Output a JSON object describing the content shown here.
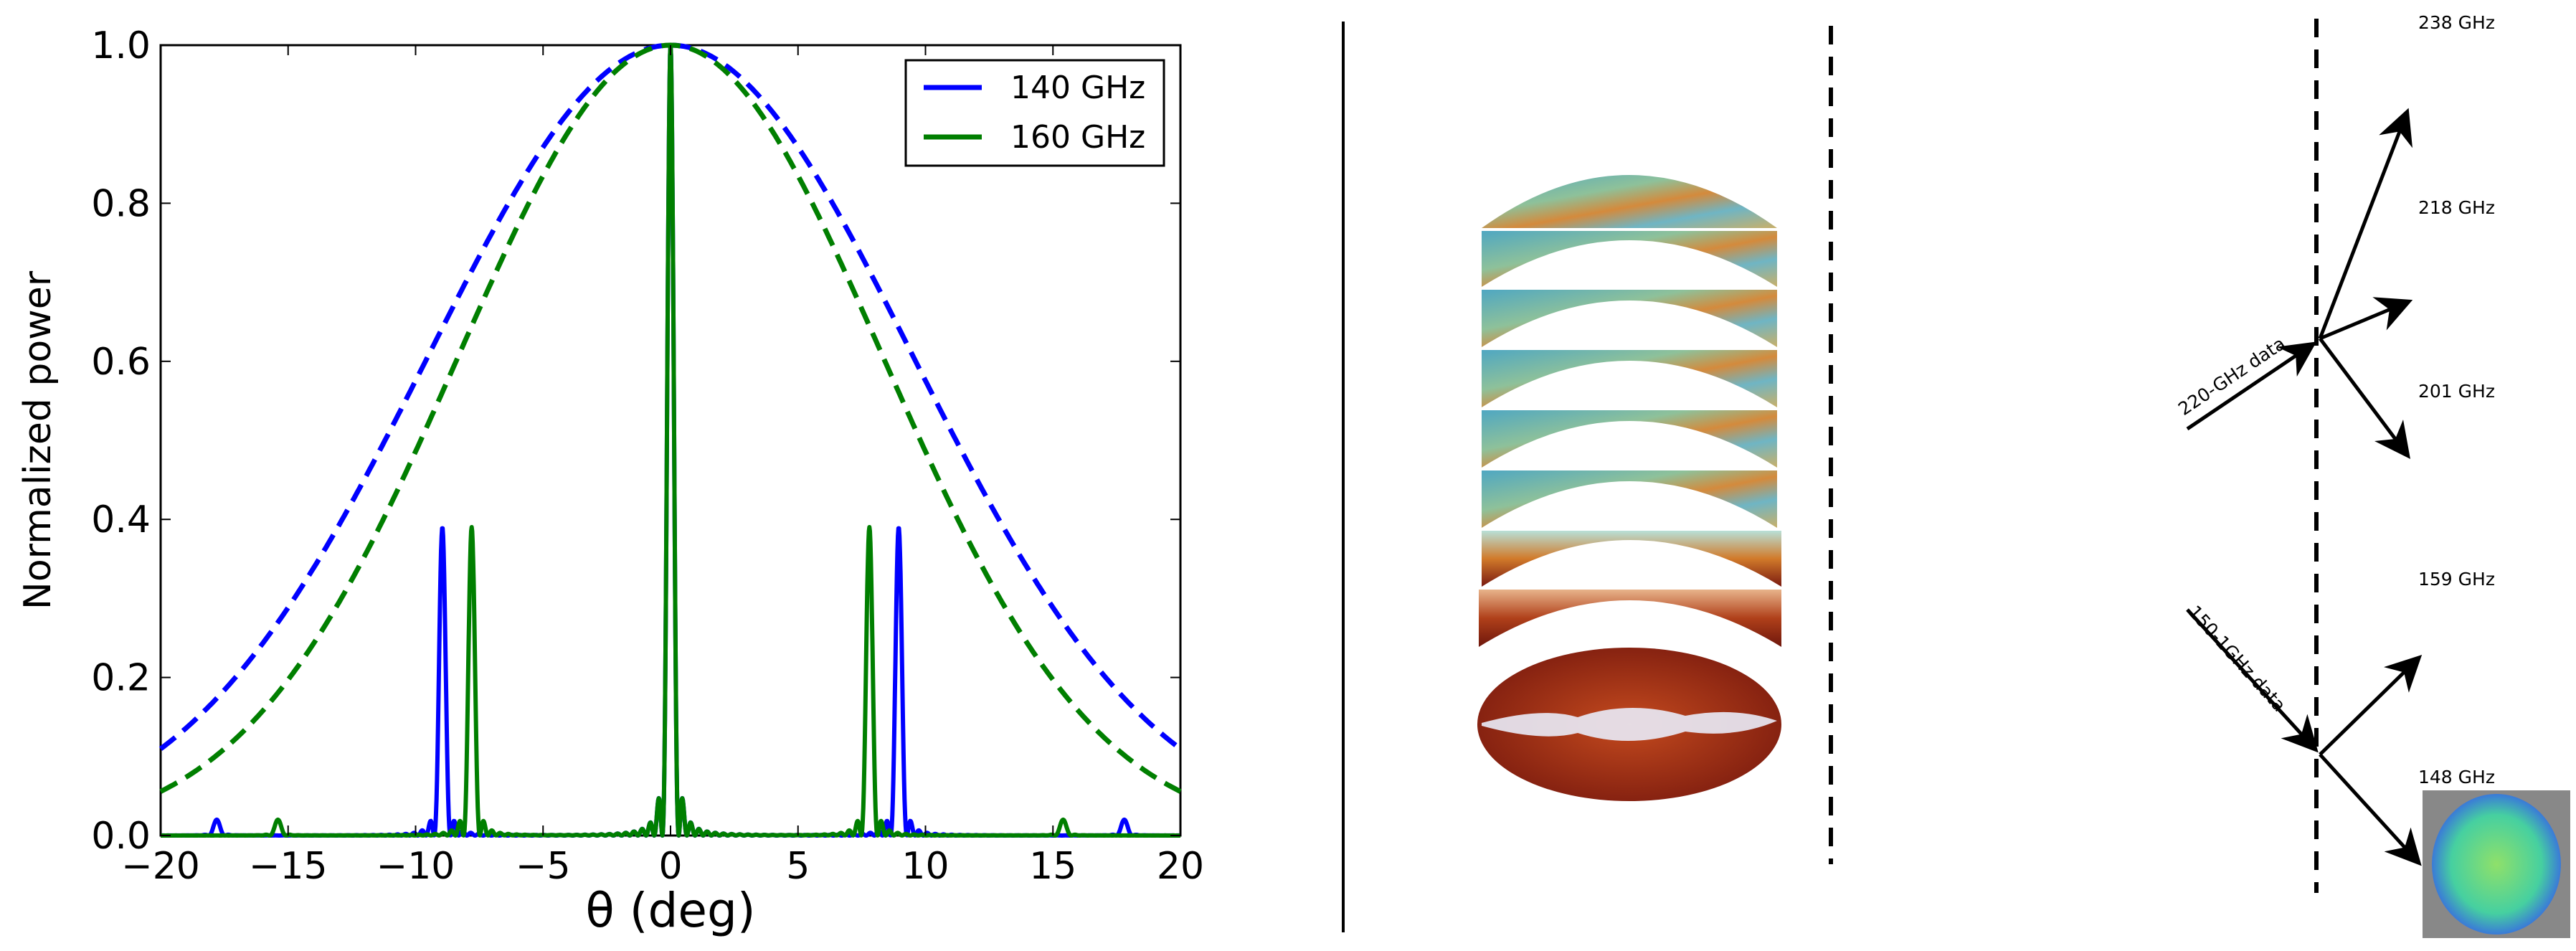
{
  "chart_data": {
    "type": "line",
    "title": "",
    "xlabel": "θ (deg)",
    "ylabel": "Normalized power",
    "xlim": [
      -20,
      20
    ],
    "ylim": [
      0.0,
      1.0
    ],
    "xticks": [
      -20,
      -15,
      -10,
      -5,
      0,
      5,
      10,
      15,
      20
    ],
    "xtick_labels": [
      "−20",
      "−15",
      "−10",
      "−5",
      "0",
      "5",
      "10",
      "15",
      "20"
    ],
    "yticks": [
      0.0,
      0.2,
      0.4,
      0.6,
      0.8,
      1.0
    ],
    "ytick_labels": [
      "0.0",
      "0.2",
      "0.4",
      "0.6",
      "0.8",
      "1.0"
    ],
    "grid": false,
    "legend_position": "top-right",
    "series": [
      {
        "name": "140 GHz",
        "color": "#0000ff",
        "envelope_fwhm_deg": 22.4,
        "peaks": [
          {
            "x": -17.8,
            "y": 0.02
          },
          {
            "x": -8.95,
            "y": 0.39
          },
          {
            "x": 0.0,
            "y": 1.0
          },
          {
            "x": 8.95,
            "y": 0.39
          },
          {
            "x": 17.8,
            "y": 0.02
          }
        ]
      },
      {
        "name": "160 GHz",
        "color": "#007f00",
        "envelope_fwhm_deg": 19.6,
        "peaks": [
          {
            "x": -15.4,
            "y": 0.02
          },
          {
            "x": -7.8,
            "y": 0.39
          },
          {
            "x": 0.0,
            "y": 1.0
          },
          {
            "x": 7.8,
            "y": 0.39
          },
          {
            "x": 15.4,
            "y": 0.02
          }
        ]
      }
    ]
  },
  "diagram": {
    "upper_input_label": "220-GHz data",
    "lower_input_label": "150-1GHz data",
    "upper_outputs": [
      "238 GHz",
      "218 GHz",
      "201 GHz"
    ],
    "lower_outputs": [
      "159 GHz",
      "148 GHz"
    ],
    "sky_map_count": 9
  }
}
